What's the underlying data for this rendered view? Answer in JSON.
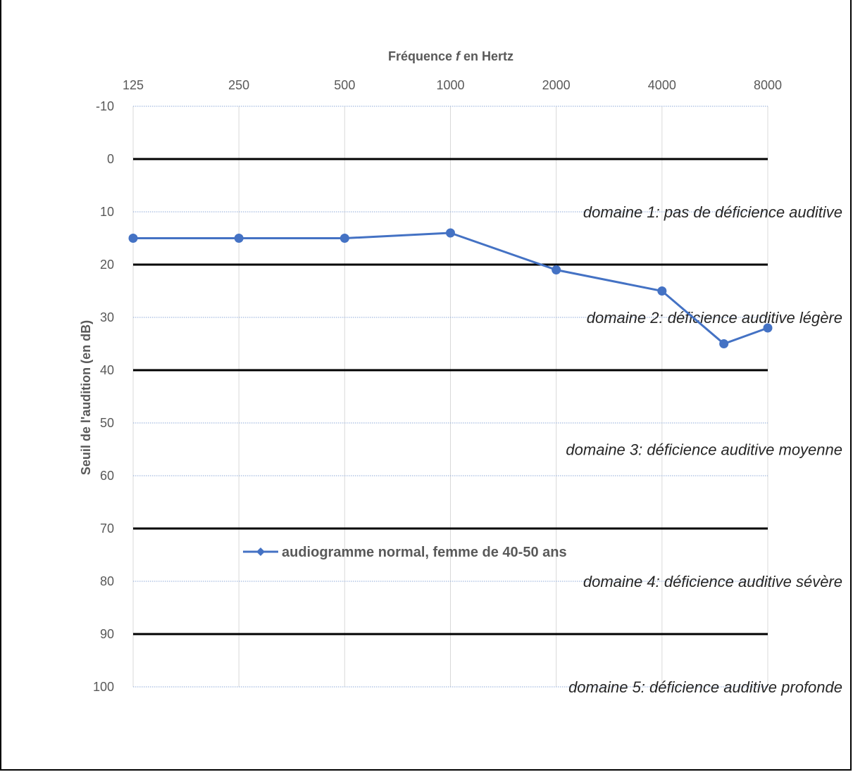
{
  "chart_data": {
    "type": "line",
    "title": "",
    "xlabel_prefix": "Fréquence ",
    "xlabel_var": "f",
    "xlabel_suffix": " en Hertz",
    "ylabel": "Seuil de l'audition (en dB)",
    "categories": [
      "125",
      "250",
      "500",
      "1000",
      "2000",
      "4000",
      "8000"
    ],
    "y_ticks": [
      "-10",
      "0",
      "10",
      "20",
      "30",
      "40",
      "50",
      "60",
      "70",
      "80",
      "90",
      "100"
    ],
    "ylim": [
      -10,
      100
    ],
    "y_inverted": true,
    "x_axis_position": "top",
    "series": [
      {
        "name": "audiogramme normal, femme de 40-50 ans",
        "color": "#4472c4",
        "points": [
          {
            "x": 125,
            "y": 15
          },
          {
            "x": 250,
            "y": 15
          },
          {
            "x": 500,
            "y": 15
          },
          {
            "x": 1000,
            "y": 14
          },
          {
            "x": 2000,
            "y": 21
          },
          {
            "x": 4000,
            "y": 25
          },
          {
            "x": 6000,
            "y": 35
          },
          {
            "x": 8000,
            "y": 32
          }
        ]
      }
    ],
    "boundaries": [
      0,
      20,
      40,
      70,
      90
    ],
    "zones": [
      {
        "label": "domaine 1: pas de déficience auditive",
        "y": 10
      },
      {
        "label": "domaine 2: déficience auditive légère",
        "y": 30
      },
      {
        "label": "domaine 3: déficience auditive moyenne",
        "y": 55
      },
      {
        "label": "domaine 4: déficience auditive sévère",
        "y": 80
      },
      {
        "label": "domaine 5: déficience auditive profonde",
        "y": 100
      }
    ],
    "legend_position": "bottom",
    "grid": true
  }
}
